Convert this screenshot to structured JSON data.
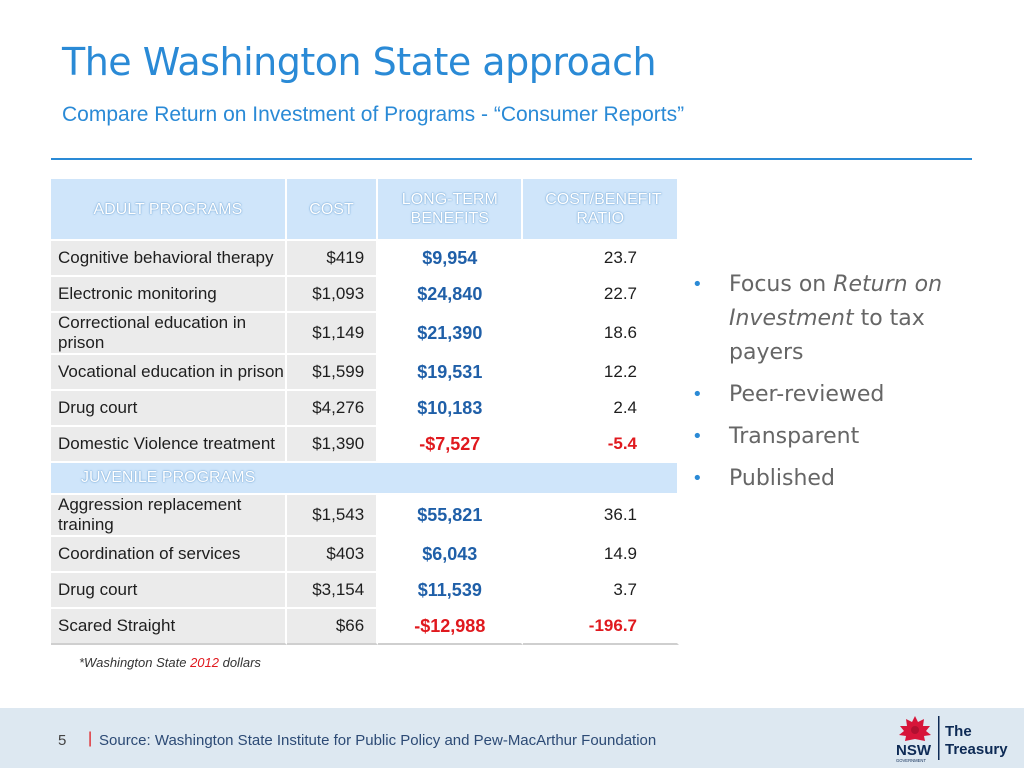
{
  "header": {
    "title": "The Washington State approach",
    "subtitle": "Compare Return on Investment of Programs - “Consumer Reports”"
  },
  "table": {
    "headers": [
      "ADULT PROGRAMS",
      "COST",
      "LONG-TERM BENEFITS",
      "COST/BENEFIT RATIO"
    ],
    "adult_rows": [
      {
        "name": "Cognitive behavioral therapy",
        "cost": "$419",
        "benefit": "$9,954",
        "ratio": "23.7"
      },
      {
        "name": "Electronic monitoring",
        "cost": "$1,093",
        "benefit": "$24,840",
        "ratio": "22.7"
      },
      {
        "name": "Correctional education in prison",
        "cost": "$1,149",
        "benefit": "$21,390",
        "ratio": "18.6"
      },
      {
        "name": "Vocational education in prison",
        "cost": "$1,599",
        "benefit": "$19,531",
        "ratio": "12.2"
      },
      {
        "name": "Drug court",
        "cost": "$4,276",
        "benefit": "$10,183",
        "ratio": "2.4"
      },
      {
        "name": "Domestic Violence treatment",
        "cost": "$1,390",
        "benefit": "-$7,527",
        "ratio": "-5.4"
      }
    ],
    "juvenile_header": "JUVENILE PROGRAMS",
    "juvenile_rows": [
      {
        "name": "Aggression replacement training",
        "cost": "$1,543",
        "benefit": "$55,821",
        "ratio": "36.1"
      },
      {
        "name": "Coordination of services",
        "cost": "$403",
        "benefit": "$6,043",
        "ratio": "14.9"
      },
      {
        "name": "Drug court",
        "cost": "$3,154",
        "benefit": "$11,539",
        "ratio": "3.7"
      },
      {
        "name": "Scared Straight",
        "cost": "$66",
        "benefit": "-$12,988",
        "ratio": "-196.7"
      }
    ]
  },
  "bullets": {
    "b1_pre": "Focus on ",
    "b1_italic": "Return on Investment",
    "b1_post": " to tax payers",
    "b2": "Peer-reviewed",
    "b3": "Transparent",
    "b4": "Published"
  },
  "footnote": {
    "pre": "*Washington State ",
    "year": "2012",
    "post": " dollars"
  },
  "footer": {
    "page_number": "5",
    "separator": "|",
    "source": "Source: Washington State Institute for Public Policy and Pew-MacArthur Foundation"
  },
  "logo": {
    "nsw": "NSW",
    "government": "GOVERNMENT",
    "the": "The",
    "treasury": "Treasury"
  },
  "colors": {
    "accent": "#2a8ad6",
    "negative": "#e0191e",
    "benefit": "#1f5fa8",
    "header_fill": "#cfe5fa"
  }
}
